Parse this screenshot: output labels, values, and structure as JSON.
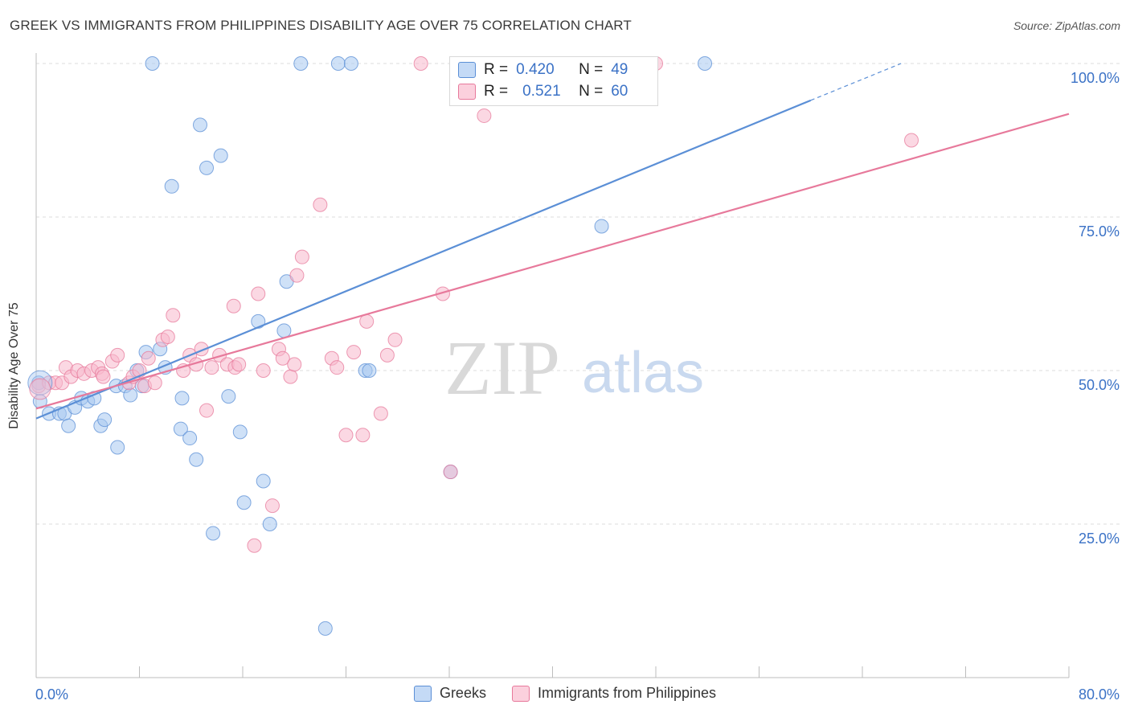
{
  "title": "GREEK VS IMMIGRANTS FROM PHILIPPINES DISABILITY AGE OVER 75 CORRELATION CHART",
  "source": "Source: ZipAtlas.com",
  "watermark": {
    "zip": "ZIP",
    "atlas": "atlas"
  },
  "legend": {
    "rows": [
      {
        "r_label": "R =",
        "r_value": "0.420",
        "n_label": "N =",
        "n_value": "49",
        "color": "#a8c8f0"
      },
      {
        "r_label": "R =",
        "r_value": "0.521",
        "n_label": "N =",
        "n_value": "60",
        "color": "#f8b8cc"
      }
    ]
  },
  "bottom_legend": [
    {
      "label": "Greeks",
      "color": "#a8c8f0"
    },
    {
      "label": "Immigrants from Philippines",
      "color": "#f8b8cc"
    }
  ],
  "chart_data": {
    "type": "scatter",
    "title": "GREEK VS IMMIGRANTS FROM PHILIPPINES DISABILITY AGE OVER 75 CORRELATION CHART",
    "xlabel": "",
    "ylabel": "Disability Age Over 75",
    "xlim": [
      0,
      80
    ],
    "ylim": [
      0,
      100
    ],
    "x_tick_labels": [
      "0.0%",
      "80.0%"
    ],
    "y_tick_labels": [
      "25.0%",
      "50.0%",
      "75.0%",
      "100.0%"
    ],
    "y_ticks": [
      25,
      50,
      75,
      100
    ],
    "grid": "horizontal dashed",
    "legend_placement": "top-center",
    "series": [
      {
        "name": "Greeks",
        "color": "#5b8fd6",
        "fill": "#a8c8f0",
        "trend": {
          "x0": 0,
          "y0": 42.2,
          "x1": 60,
          "y1": 94,
          "dashed_to_x": 67,
          "dashed_to_y": 100
        },
        "points": [
          [
            0.2,
            48
          ],
          [
            0.3,
            45
          ],
          [
            1.0,
            43
          ],
          [
            1.8,
            43
          ],
          [
            2.2,
            43
          ],
          [
            2.5,
            41
          ],
          [
            3.0,
            44
          ],
          [
            3.5,
            45.5
          ],
          [
            4.0,
            45
          ],
          [
            4.5,
            45.5
          ],
          [
            5.0,
            41
          ],
          [
            5.3,
            42
          ],
          [
            6.2,
            47.5
          ],
          [
            6.3,
            37.5
          ],
          [
            6.9,
            47.5
          ],
          [
            7.3,
            46
          ],
          [
            7.8,
            50
          ],
          [
            8.2,
            47.5
          ],
          [
            8.5,
            53
          ],
          [
            9.0,
            100
          ],
          [
            9.6,
            53.5
          ],
          [
            10.0,
            50.5
          ],
          [
            10.5,
            80
          ],
          [
            11.3,
            45.5
          ],
          [
            11.2,
            40.5
          ],
          [
            11.9,
            39
          ],
          [
            12.4,
            35.5
          ],
          [
            12.7,
            90
          ],
          [
            13.2,
            83
          ],
          [
            13.7,
            23.5
          ],
          [
            14.3,
            85
          ],
          [
            14.9,
            45.8
          ],
          [
            15.8,
            40
          ],
          [
            16.1,
            28.5
          ],
          [
            17.2,
            58
          ],
          [
            17.6,
            32
          ],
          [
            18.1,
            25
          ],
          [
            19.2,
            56.5
          ],
          [
            19.4,
            64.5
          ],
          [
            20.5,
            100
          ],
          [
            22.4,
            8
          ],
          [
            23.4,
            100
          ],
          [
            24.4,
            100
          ],
          [
            25.5,
            50
          ],
          [
            25.8,
            50
          ],
          [
            32.1,
            33.5
          ],
          [
            35.4,
            100
          ],
          [
            43.8,
            73.5
          ],
          [
            51.8,
            100
          ]
        ]
      },
      {
        "name": "Immigrants from Philippines",
        "color": "#e7799b",
        "fill": "#f8b8cc",
        "trend": {
          "x0": 0,
          "y0": 43.8,
          "x1": 80,
          "y1": 91.8
        },
        "points": [
          [
            0.2,
            47.5
          ],
          [
            1.0,
            48
          ],
          [
            1.5,
            48
          ],
          [
            2.0,
            48
          ],
          [
            2.3,
            50.5
          ],
          [
            2.7,
            49
          ],
          [
            3.2,
            50
          ],
          [
            3.7,
            49.5
          ],
          [
            4.3,
            50
          ],
          [
            4.8,
            50.5
          ],
          [
            5.1,
            49.5
          ],
          [
            5.2,
            49
          ],
          [
            5.9,
            51.5
          ],
          [
            6.3,
            52.5
          ],
          [
            7.2,
            48
          ],
          [
            7.5,
            49
          ],
          [
            8.0,
            50
          ],
          [
            8.4,
            47.5
          ],
          [
            8.7,
            52
          ],
          [
            9.2,
            48
          ],
          [
            9.8,
            55
          ],
          [
            10.2,
            55.5
          ],
          [
            10.6,
            59
          ],
          [
            11.4,
            50
          ],
          [
            11.9,
            52.5
          ],
          [
            12.4,
            51
          ],
          [
            12.8,
            53.5
          ],
          [
            13.2,
            43.5
          ],
          [
            13.6,
            50.5
          ],
          [
            14.2,
            52.5
          ],
          [
            14.8,
            51
          ],
          [
            15.4,
            50.5
          ],
          [
            15.7,
            51
          ],
          [
            15.3,
            60.5
          ],
          [
            16.9,
            21.5
          ],
          [
            17.2,
            62.5
          ],
          [
            17.6,
            50
          ],
          [
            18.3,
            28
          ],
          [
            18.8,
            53.5
          ],
          [
            19.1,
            52
          ],
          [
            19.7,
            49
          ],
          [
            20.0,
            51
          ],
          [
            20.6,
            68.5
          ],
          [
            20.2,
            65.5
          ],
          [
            22.0,
            77
          ],
          [
            22.9,
            52
          ],
          [
            23.3,
            50.5
          ],
          [
            24.0,
            39.5
          ],
          [
            24.6,
            53
          ],
          [
            25.3,
            39.5
          ],
          [
            25.6,
            58
          ],
          [
            26.7,
            43
          ],
          [
            27.2,
            52.5
          ],
          [
            27.8,
            55
          ],
          [
            29.8,
            100
          ],
          [
            31.5,
            62.5
          ],
          [
            32.1,
            33.5
          ],
          [
            34.7,
            91.5
          ],
          [
            48.0,
            100
          ],
          [
            67.8,
            87.5
          ]
        ]
      }
    ]
  }
}
